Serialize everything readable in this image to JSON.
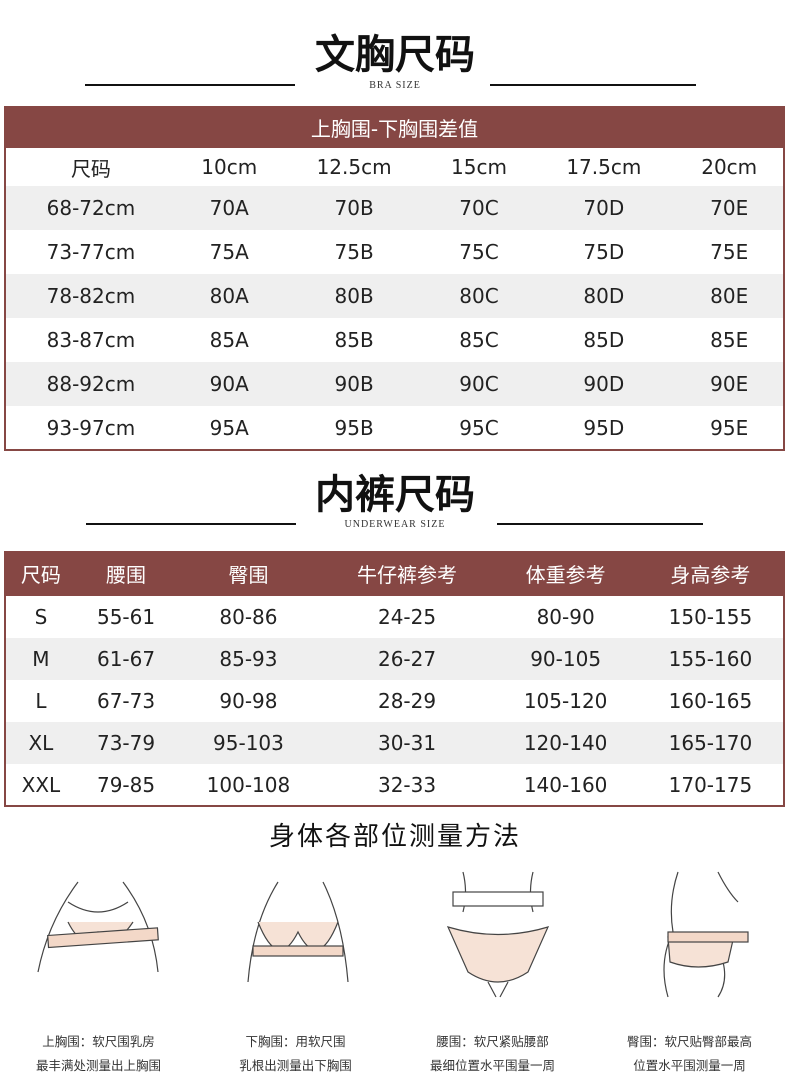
{
  "bra": {
    "title": "文胸尺码",
    "subtitle": "BRA SIZE",
    "band_label": "上胸围-下胸围差值",
    "headers": [
      "尺码",
      "10cm",
      "12.5cm",
      "15cm",
      "17.5cm",
      "20cm"
    ],
    "rows": [
      [
        "68-72cm",
        "70A",
        "70B",
        "70C",
        "70D",
        "70E"
      ],
      [
        "73-77cm",
        "75A",
        "75B",
        "75C",
        "75D",
        "75E"
      ],
      [
        "78-82cm",
        "80A",
        "80B",
        "80C",
        "80D",
        "80E"
      ],
      [
        "83-87cm",
        "85A",
        "85B",
        "85C",
        "85D",
        "85E"
      ],
      [
        "88-92cm",
        "90A",
        "90B",
        "90C",
        "90D",
        "90E"
      ],
      [
        "93-97cm",
        "95A",
        "95B",
        "95C",
        "95D",
        "95E"
      ]
    ]
  },
  "underwear": {
    "title": "内裤尺码",
    "subtitle": "UNDERWEAR SIZE",
    "headers": [
      "尺码",
      "腰围",
      "臀围",
      "牛仔裤参考",
      "体重参考",
      "身高参考"
    ],
    "rows": [
      [
        "S",
        "55-61",
        "80-86",
        "24-25",
        "80-90",
        "150-155"
      ],
      [
        "M",
        "61-67",
        "85-93",
        "26-27",
        "90-105",
        "155-160"
      ],
      [
        "L",
        "67-73",
        "90-98",
        "28-29",
        "105-120",
        "160-165"
      ],
      [
        "XL",
        "73-79",
        "95-103",
        "30-31",
        "120-140",
        "165-170"
      ],
      [
        "XXL",
        "79-85",
        "100-108",
        "32-33",
        "140-160",
        "170-175"
      ]
    ]
  },
  "measure": {
    "title": "身体各部位测量方法",
    "items": [
      {
        "line1": "上胸围：软尺围乳房",
        "line2": "最丰满处测量出上胸围"
      },
      {
        "line1": "下胸围：用软尺围",
        "line2": "乳根出测量出下胸围"
      },
      {
        "line1": "腰围：软尺紧贴腰部",
        "line2": "最细位置水平围量一周"
      },
      {
        "line1": "臀围：软尺贴臀部最高",
        "line2": "位置水平围测量一周"
      }
    ]
  },
  "colors": {
    "accent": "#864744",
    "stripe": "#efefef"
  }
}
